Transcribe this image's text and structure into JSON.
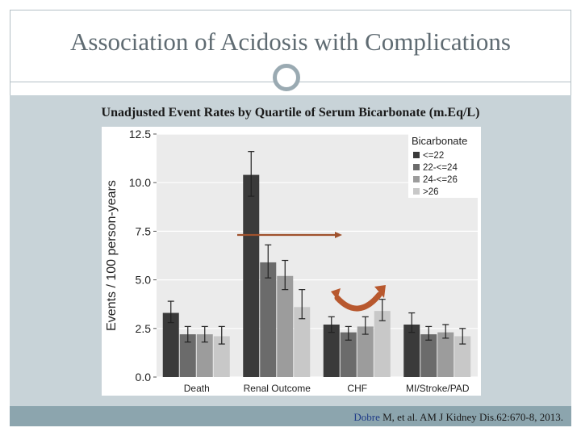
{
  "slide": {
    "title": "Association of Acidosis with Complications",
    "subtitle": "Unadjusted Event Rates by Quartile of Serum Bicarbonate (m.Eq/L)",
    "citation_author": "Dobre",
    "citation_rest": " M, et al. AM J Kidney Dis.62:670-8, 2013."
  },
  "colors": {
    "series": [
      "#3a3a3a",
      "#6b6b6b",
      "#9c9c9c",
      "#c8c8c8"
    ],
    "arrow_straight": "#a0522d",
    "arrow_curved": "#b8582e"
  },
  "chart_data": {
    "type": "bar",
    "ylabel": "Events / 100 person-years",
    "ylim": [
      0,
      12.5
    ],
    "yticks": [
      "0.0",
      "2.5",
      "5.0",
      "7.5",
      "10.0",
      "12.5"
    ],
    "categories": [
      "Death",
      "Renal Outcome",
      "CHF",
      "MI/Stroke/PAD"
    ],
    "legend_title": "Bicarbonate",
    "legend_position": "top-right",
    "series": [
      {
        "name": "<=22",
        "values": [
          3.3,
          10.4,
          2.7,
          2.7
        ],
        "lower": [
          2.8,
          9.3,
          2.3,
          2.3
        ],
        "upper": [
          3.9,
          11.6,
          3.1,
          3.3
        ]
      },
      {
        "name": "22-<=24",
        "values": [
          2.2,
          5.9,
          2.3,
          2.2
        ],
        "lower": [
          1.8,
          5.1,
          1.9,
          1.9
        ],
        "upper": [
          2.6,
          6.8,
          2.6,
          2.6
        ]
      },
      {
        "name": "24-<=26",
        "values": [
          2.2,
          5.2,
          2.6,
          2.3
        ],
        "lower": [
          1.8,
          4.5,
          2.2,
          2.0
        ],
        "upper": [
          2.6,
          6.0,
          3.1,
          2.7
        ]
      },
      {
        "name": ">26",
        "values": [
          2.1,
          3.6,
          3.4,
          2.1
        ],
        "lower": [
          1.7,
          3.0,
          2.9,
          1.7
        ],
        "upper": [
          2.6,
          4.5,
          4.0,
          2.5
        ]
      }
    ]
  }
}
